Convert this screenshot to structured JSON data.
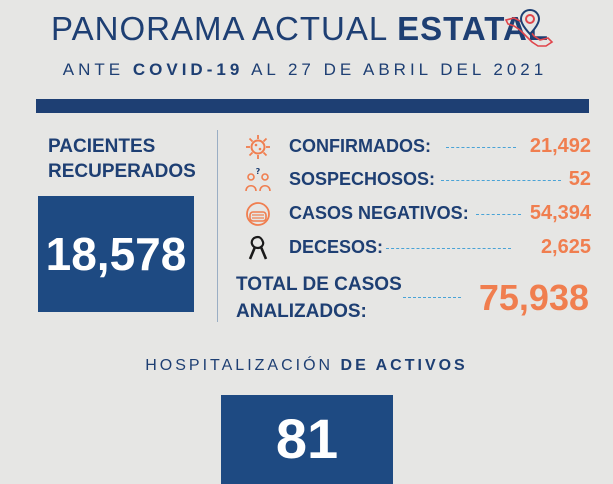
{
  "header": {
    "title_light": "PANORAMA ACTUAL ",
    "title_bold": "ESTATAL",
    "subtitle_pre": "ANTE ",
    "subtitle_bold": "COVID-19",
    "subtitle_post": " AL 27 DE ABRIL DEL 2021"
  },
  "recovered": {
    "label_line1": "PACIENTES",
    "label_line2": "RECUPERADOS",
    "value": "18,578"
  },
  "stats": [
    {
      "label": "CONFIRMADOS:",
      "value": "21,492",
      "icon": "virus-icon"
    },
    {
      "label": "SOSPECHOSOS:",
      "value": "52",
      "icon": "people-question-icon"
    },
    {
      "label": "CASOS NEGATIVOS:",
      "value": "54,394",
      "icon": "face-mask-icon"
    },
    {
      "label": "DECESOS:",
      "value": "2,625",
      "icon": "mourning-ribbon-icon"
    }
  ],
  "total": {
    "label_line1": "TOTAL DE CASOS",
    "label_line2": "ANALIZADOS:",
    "value": "75,938"
  },
  "hospital": {
    "label_pre": "HOSPITALIZACIÓN ",
    "label_bold": "DE ACTIVOS",
    "value": "81"
  },
  "colors": {
    "navy": "#1e3f73",
    "box": "#1e4a82",
    "accent": "#f07e4f",
    "dash": "#4aa3d6",
    "background": "#e6e6e4"
  }
}
